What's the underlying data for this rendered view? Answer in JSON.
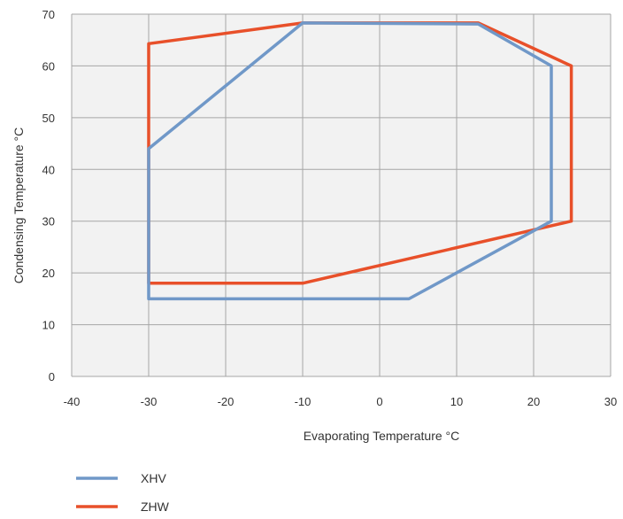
{
  "chart_data": {
    "type": "line",
    "title": "",
    "xlabel": "Evaporating Temperature °C",
    "ylabel": "Condensing Temperature °C",
    "xlim": [
      -40,
      30
    ],
    "ylim": [
      0,
      70
    ],
    "x_ticks": [
      -40,
      -30,
      -20,
      -10,
      0,
      10,
      20,
      30
    ],
    "y_ticks": [
      0,
      10,
      20,
      30,
      40,
      50,
      60,
      70
    ],
    "grid": true,
    "plot_background": "#f2f2f2",
    "grid_color": "#a6a6a6",
    "legend_position": "bottom-left",
    "series": [
      {
        "name": "XHV",
        "color": "#7098c8",
        "closed": true,
        "points": [
          [
            -30,
            15
          ],
          [
            -30,
            44
          ],
          [
            -10,
            68.3
          ],
          [
            12.8,
            68.1
          ],
          [
            22.3,
            60
          ],
          [
            22.3,
            30
          ],
          [
            3.8,
            15
          ],
          [
            -30,
            15
          ]
        ]
      },
      {
        "name": "ZHW",
        "color": "#e8502a",
        "closed": true,
        "points": [
          [
            -30,
            18
          ],
          [
            -30,
            64.3
          ],
          [
            -10,
            68.3
          ],
          [
            12.8,
            68.3
          ],
          [
            24.9,
            60
          ],
          [
            24.9,
            30
          ],
          [
            -10,
            18
          ],
          [
            -30,
            18
          ]
        ]
      }
    ]
  }
}
